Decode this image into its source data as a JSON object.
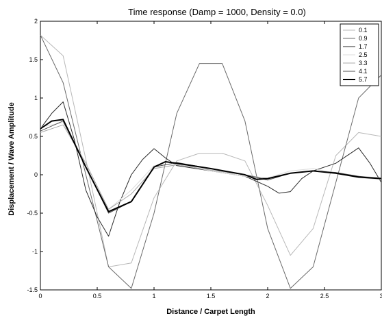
{
  "chart_data": {
    "type": "line",
    "title": "Time response (Damp = 1000, Density = 0.0)",
    "xlabel": "Distance / Carpet Length",
    "ylabel": "Displacement / Wave Amplitude",
    "xlim": [
      0,
      3
    ],
    "ylim": [
      -1.5,
      2
    ],
    "xticks": [
      0,
      0.5,
      1,
      1.5,
      2,
      2.5,
      3
    ],
    "xtick_labels": [
      "0",
      "0.5",
      "1",
      "1.5",
      "2",
      "2.5",
      "3"
    ],
    "yticks": [
      -1.5,
      -1,
      -0.5,
      0,
      0.5,
      1,
      1.5,
      2
    ],
    "ytick_labels": [
      "-1.5",
      "-1",
      "-0.5",
      "0",
      "0.5",
      "1",
      "1.5",
      "2"
    ],
    "grid": false,
    "legend_position": "top-right",
    "series": [
      {
        "name": "0.1",
        "color": "#b8b8b8",
        "width": 1,
        "points": [
          [
            0,
            1.82
          ],
          [
            0.2,
            1.55
          ],
          [
            0.4,
            0.2
          ],
          [
            0.6,
            -1.2
          ],
          [
            0.8,
            -1.15
          ],
          [
            1.0,
            -0.3
          ],
          [
            1.2,
            0.18
          ],
          [
            1.4,
            0.28
          ],
          [
            1.6,
            0.28
          ],
          [
            1.8,
            0.18
          ],
          [
            2.0,
            -0.4
          ],
          [
            2.2,
            -1.05
          ],
          [
            2.4,
            -0.7
          ],
          [
            2.6,
            0.25
          ],
          [
            2.8,
            0.55
          ],
          [
            3.0,
            0.5
          ]
        ]
      },
      {
        "name": "0.9",
        "color": "#6a6a6a",
        "width": 1,
        "points": [
          [
            0,
            1.82
          ],
          [
            0.2,
            1.2
          ],
          [
            0.4,
            0.0
          ],
          [
            0.6,
            -1.2
          ],
          [
            0.8,
            -1.48
          ],
          [
            1.0,
            -0.5
          ],
          [
            1.2,
            0.8
          ],
          [
            1.4,
            1.45
          ],
          [
            1.6,
            1.45
          ],
          [
            1.8,
            0.7
          ],
          [
            2.0,
            -0.7
          ],
          [
            2.2,
            -1.48
          ],
          [
            2.4,
            -1.2
          ],
          [
            2.6,
            -0.1
          ],
          [
            2.8,
            1.0
          ],
          [
            3.0,
            1.3
          ]
        ]
      },
      {
        "name": "1.7",
        "color": "#2a2a2a",
        "width": 1,
        "points": [
          [
            0,
            0.6
          ],
          [
            0.1,
            0.8
          ],
          [
            0.2,
            0.95
          ],
          [
            0.3,
            0.45
          ],
          [
            0.4,
            -0.2
          ],
          [
            0.5,
            -0.55
          ],
          [
            0.6,
            -0.8
          ],
          [
            0.7,
            -0.35
          ],
          [
            0.8,
            0.0
          ],
          [
            0.9,
            0.2
          ],
          [
            1.0,
            0.34
          ],
          [
            1.1,
            0.22
          ],
          [
            1.2,
            0.12
          ],
          [
            1.5,
            0.05
          ],
          [
            1.8,
            -0.02
          ],
          [
            2.0,
            -0.15
          ],
          [
            2.1,
            -0.24
          ],
          [
            2.2,
            -0.22
          ],
          [
            2.3,
            -0.05
          ],
          [
            2.4,
            0.05
          ],
          [
            2.6,
            0.15
          ],
          [
            2.8,
            0.35
          ],
          [
            2.9,
            0.15
          ],
          [
            3.0,
            -0.1
          ]
        ]
      },
      {
        "name": "2.5",
        "color": "#dcdcdc",
        "width": 1,
        "points": [
          [
            0,
            0.62
          ],
          [
            0.2,
            0.68
          ],
          [
            0.4,
            0.15
          ],
          [
            0.6,
            -0.45
          ],
          [
            0.8,
            -0.2
          ],
          [
            1.0,
            0.12
          ],
          [
            1.2,
            0.14
          ],
          [
            1.5,
            0.05
          ],
          [
            1.8,
            -0.02
          ],
          [
            2.0,
            -0.04
          ],
          [
            2.2,
            0.05
          ],
          [
            2.4,
            0.08
          ],
          [
            2.6,
            0.02
          ],
          [
            2.8,
            -0.04
          ],
          [
            3.0,
            -0.06
          ]
        ]
      },
      {
        "name": "3.3",
        "color": "#a8a8a8",
        "width": 1,
        "points": [
          [
            0,
            0.55
          ],
          [
            0.2,
            0.65
          ],
          [
            0.4,
            0.15
          ],
          [
            0.6,
            -0.45
          ],
          [
            0.8,
            -0.25
          ],
          [
            1.0,
            0.08
          ],
          [
            1.2,
            0.13
          ],
          [
            1.5,
            0.06
          ],
          [
            1.8,
            0.0
          ],
          [
            2.0,
            -0.05
          ],
          [
            2.2,
            0.02
          ],
          [
            2.4,
            0.05
          ],
          [
            2.6,
            0.02
          ],
          [
            2.8,
            -0.02
          ],
          [
            3.0,
            -0.04
          ]
        ]
      },
      {
        "name": "4.1",
        "color": "#505050",
        "width": 1,
        "points": [
          [
            0,
            0.57
          ],
          [
            0.2,
            0.7
          ],
          [
            0.4,
            0.1
          ],
          [
            0.6,
            -0.5
          ],
          [
            0.8,
            -0.35
          ],
          [
            1.0,
            0.1
          ],
          [
            1.2,
            0.16
          ],
          [
            1.5,
            0.08
          ],
          [
            1.8,
            0.0
          ],
          [
            2.0,
            -0.07
          ],
          [
            2.2,
            0.02
          ],
          [
            2.4,
            0.05
          ],
          [
            2.6,
            0.03
          ],
          [
            2.8,
            -0.02
          ],
          [
            3.0,
            -0.05
          ]
        ]
      },
      {
        "name": "5.7",
        "color": "#000000",
        "width": 2,
        "points": [
          [
            0,
            0.6
          ],
          [
            0.1,
            0.7
          ],
          [
            0.2,
            0.72
          ],
          [
            0.4,
            0.1
          ],
          [
            0.6,
            -0.48
          ],
          [
            0.8,
            -0.35
          ],
          [
            1.0,
            0.1
          ],
          [
            1.1,
            0.17
          ],
          [
            1.2,
            0.15
          ],
          [
            1.5,
            0.08
          ],
          [
            1.8,
            0.0
          ],
          [
            1.9,
            -0.06
          ],
          [
            2.0,
            -0.05
          ],
          [
            2.2,
            0.02
          ],
          [
            2.4,
            0.05
          ],
          [
            2.6,
            0.02
          ],
          [
            2.8,
            -0.03
          ],
          [
            3.0,
            -0.05
          ]
        ]
      }
    ]
  }
}
